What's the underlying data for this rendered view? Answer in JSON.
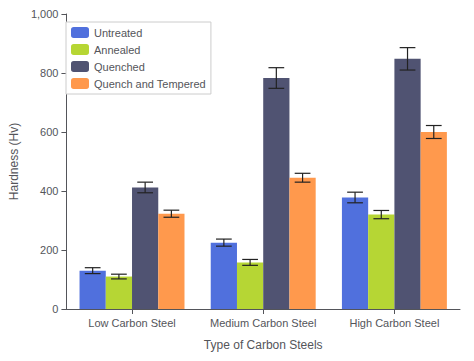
{
  "chart_data": {
    "type": "bar",
    "xlabel": "Type of Carbon Steels",
    "ylabel": "Hardness (Hv)",
    "categories": [
      "Low Carbon Steel",
      "Medium Carbon Steel",
      "High Carbon Steel"
    ],
    "series": [
      {
        "name": "Untreated",
        "values": [
          130,
          225,
          378
        ],
        "errors": [
          10,
          12,
          18
        ]
      },
      {
        "name": "Annealed",
        "values": [
          110,
          158,
          320
        ],
        "errors": [
          8,
          10,
          14
        ]
      },
      {
        "name": "Quenched",
        "values": [
          412,
          783,
          848
        ],
        "errors": [
          18,
          35,
          38
        ]
      },
      {
        "name": "Quench and Tempered",
        "values": [
          323,
          445,
          600
        ],
        "errors": [
          12,
          15,
          22
        ]
      }
    ],
    "ylim": [
      0,
      1000
    ],
    "yticks": [
      0,
      200,
      400,
      600,
      800,
      1000
    ],
    "grid": false,
    "legend": "upper left"
  }
}
